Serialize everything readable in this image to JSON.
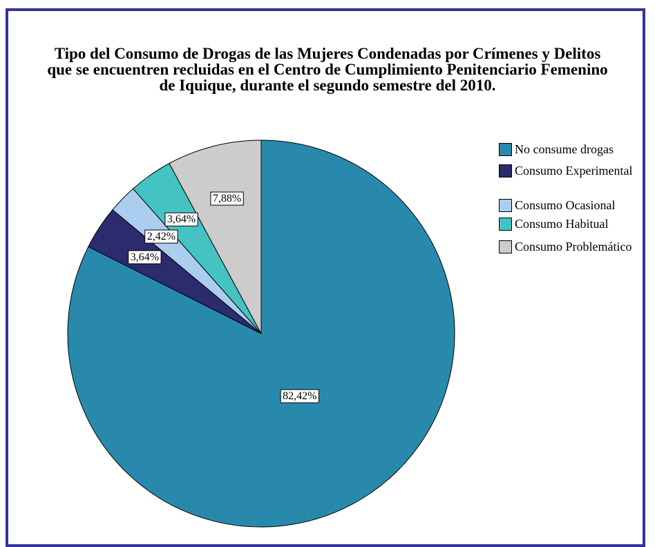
{
  "chart_data": {
    "type": "pie",
    "title": "Tipo del Consumo de Drogas de las Mujeres Condenadas por Crímenes y Delitos que se encuentren recluidas en el Centro de Cumplimiento Penitenciario Femenino de Iquique, durante el segundo semestre del 2010.",
    "categories": [
      "No consume drogas",
      "Consumo Experimental",
      "Consumo Ocasional",
      "Consumo Habitual",
      "Consumo Problemático"
    ],
    "values": [
      82.42,
      3.64,
      2.42,
      3.64,
      7.88
    ],
    "value_labels": [
      "82,42%",
      "3,64%",
      "2,42%",
      "3,64%",
      "7,88%"
    ],
    "colors": [
      "#2989ad",
      "#2b2b6e",
      "#aacdf0",
      "#45c3c3",
      "#cccccc"
    ],
    "legend": "right"
  }
}
